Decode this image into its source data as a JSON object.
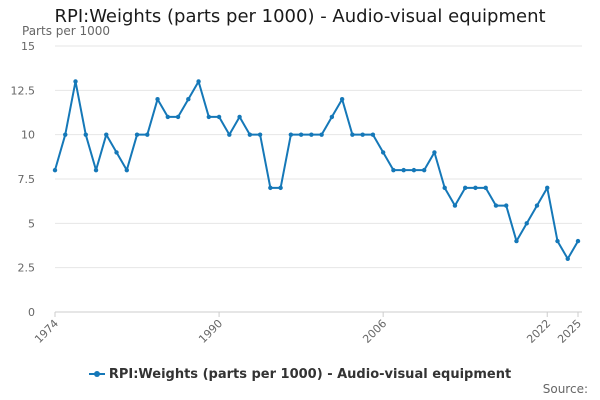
{
  "title": "RPI:Weights (parts per 1000) - Audio-visual equipment",
  "source_label": "Source:",
  "colors": {
    "series": "#1578b8",
    "grid": "#e6e6e6",
    "axis": "#cccccc",
    "text": "#666666"
  },
  "chart_data": {
    "type": "line",
    "title": "RPI:Weights (parts per 1000) - Audio-visual equipment",
    "ylabel": "Parts per 1000",
    "xlabel": "",
    "ylim": [
      0,
      15
    ],
    "yticks": [
      0,
      2.5,
      5,
      7.5,
      10,
      12.5,
      15
    ],
    "ytick_labels": [
      "0",
      "2.5",
      "5",
      "7.5",
      "10",
      "12.5",
      "15"
    ],
    "xlim": [
      1974,
      2025
    ],
    "xticks": [
      1974,
      1990,
      2006,
      2022,
      2025
    ],
    "grid": true,
    "legend_position": "bottom-center",
    "series": [
      {
        "name": "RPI:Weights (parts per 1000) - Audio-visual equipment",
        "x": [
          1974,
          1975,
          1976,
          1977,
          1978,
          1979,
          1980,
          1981,
          1982,
          1983,
          1984,
          1985,
          1986,
          1987,
          1988,
          1989,
          1990,
          1991,
          1992,
          1993,
          1994,
          1995,
          1996,
          1997,
          1998,
          1999,
          2000,
          2001,
          2002,
          2003,
          2004,
          2005,
          2006,
          2007,
          2008,
          2009,
          2010,
          2011,
          2012,
          2013,
          2014,
          2015,
          2016,
          2017,
          2018,
          2019,
          2020,
          2021,
          2022,
          2023,
          2024,
          2025
        ],
        "values": [
          8,
          10,
          13,
          10,
          8,
          10,
          9,
          8,
          10,
          10,
          12,
          11,
          11,
          12,
          13,
          11,
          11,
          10,
          11,
          10,
          10,
          7,
          7,
          10,
          10,
          10,
          10,
          11,
          12,
          10,
          10,
          10,
          9,
          8,
          8,
          8,
          8,
          9,
          7,
          6,
          7,
          7,
          7,
          6,
          6,
          4,
          5,
          6,
          7,
          4,
          3,
          4
        ]
      }
    ]
  }
}
